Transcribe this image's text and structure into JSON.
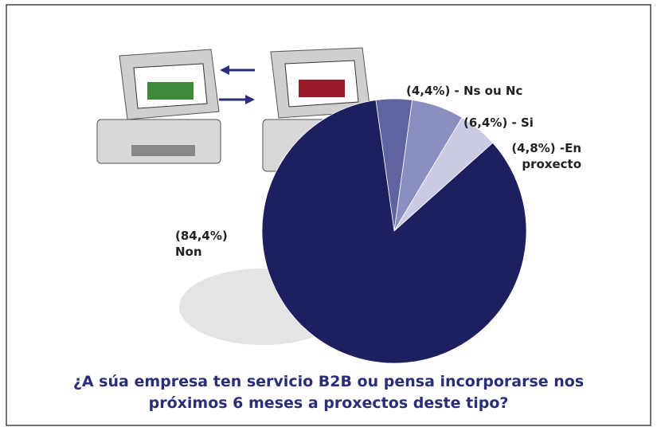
{
  "chart_data": {
    "type": "pie",
    "title": "¿A súa empresa ten servicio B2B ou pensa incorporarse nos próximos 6 meses a proxectos deste tipo?",
    "categories": [
      "(4,4%) - Ns ou Nc",
      "(6,4%) - Si",
      "(4,8%) -En proxecto",
      "(84,4%) Non"
    ],
    "values": [
      4.4,
      6.4,
      4.8,
      84.4
    ],
    "colors": [
      "#5f64a0",
      "#8a8ec0",
      "#c9cbe4",
      "#1e1f5e"
    ]
  }
}
